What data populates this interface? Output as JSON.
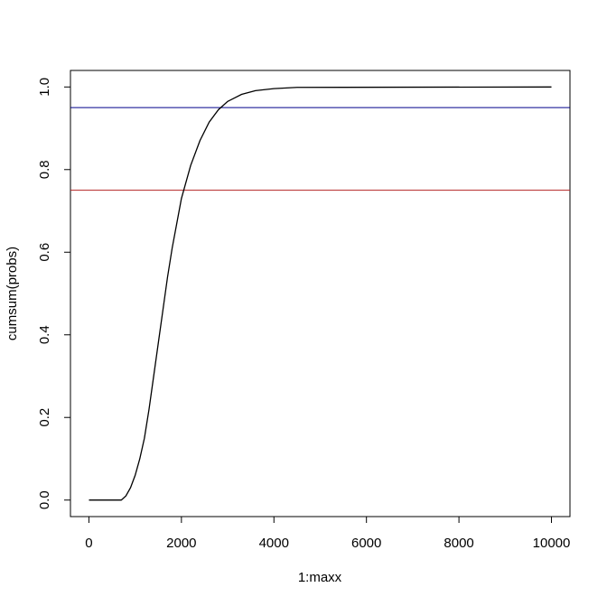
{
  "chart_data": {
    "type": "line",
    "x_label": "1:maxx",
    "y_label": "cumsum(probs)",
    "x": [
      1,
      700,
      800,
      900,
      1000,
      1100,
      1200,
      1300,
      1400,
      1500,
      1600,
      1700,
      1800,
      1900,
      2000,
      2200,
      2400,
      2600,
      2800,
      3000,
      3300,
      3600,
      4000,
      4500,
      10000
    ],
    "series": [
      {
        "color": "#000000",
        "values": [
          0,
          0,
          0.01,
          0.03,
          0.06,
          0.1,
          0.15,
          0.22,
          0.3,
          0.38,
          0.46,
          0.54,
          0.61,
          0.67,
          0.73,
          0.81,
          0.87,
          0.915,
          0.945,
          0.965,
          0.982,
          0.991,
          0.996,
          0.999,
          1
        ]
      }
    ],
    "hlines": [
      {
        "value": 0.95,
        "color": "#00008b"
      },
      {
        "value": 0.75,
        "color": "#b22222"
      }
    ],
    "xlim": [
      -399,
      10400
    ],
    "ylim": [
      -0.04,
      1.04
    ],
    "xticks": [
      0,
      2000,
      4000,
      6000,
      8000,
      10000
    ],
    "yticks": [
      {
        "value": 0,
        "label": "0.0"
      },
      0.2,
      0.4,
      0.6,
      0.8,
      {
        "value": 1,
        "label": "1.0"
      }
    ]
  }
}
